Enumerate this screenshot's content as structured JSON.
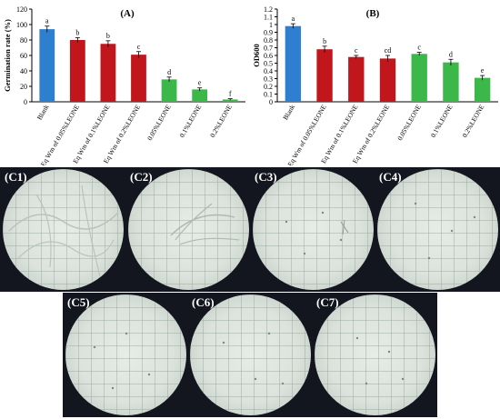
{
  "chart_data": [
    {
      "type": "bar",
      "panel_label": "(A)",
      "ylabel": "Germination rate (%)",
      "ylim": [
        0,
        120
      ],
      "yticks": [
        "0",
        "20",
        "40",
        "60",
        "80",
        "100",
        "120"
      ],
      "categories": [
        "Blank",
        "Eq Wm of 0.05%LEONE",
        "Eq Wm of 0.1%LEONE",
        "Eq Wm of 0.2%LEONE",
        "0.05%LEONE",
        "0.1%LEONE",
        "0.2%LEONE"
      ],
      "values": [
        94,
        80,
        75,
        61,
        29,
        16,
        3
      ],
      "errors": [
        4,
        3,
        4,
        4,
        3,
        2,
        1
      ],
      "letters": [
        "a",
        "b",
        "b",
        "c",
        "d",
        "e",
        "f"
      ],
      "colors": [
        "#2f7fd0",
        "#c0161c",
        "#c0161c",
        "#c0161c",
        "#3cb84a",
        "#3cb84a",
        "#3cb84a"
      ]
    },
    {
      "type": "bar",
      "panel_label": "(B)",
      "ylabel": "OD600",
      "ylim": [
        0,
        1.2
      ],
      "yticks": [
        "0",
        "0.1",
        "0.2",
        "0.3",
        "0.4",
        "0.5",
        "0.6",
        "0.7",
        "0.8",
        "0.9",
        "1",
        "1.1",
        "1.2"
      ],
      "categories": [
        "Blank",
        "Eq Wm of 0.05%LEONE",
        "Eq Wm of 0.1%LEONE",
        "Eq Wm of 0.2%LEONE",
        "0.05%LEONE",
        "0.1%LEONE",
        "0.2%LEONE"
      ],
      "values": [
        0.98,
        0.68,
        0.58,
        0.56,
        0.62,
        0.51,
        0.31
      ],
      "errors": [
        0.03,
        0.04,
        0.02,
        0.04,
        0.02,
        0.04,
        0.03
      ],
      "letters": [
        "a",
        "b",
        "c",
        "cd",
        "c",
        "d",
        "e"
      ],
      "colors": [
        "#2f7fd0",
        "#c0161c",
        "#c0161c",
        "#c0161c",
        "#3cb84a",
        "#3cb84a",
        "#3cb84a"
      ]
    }
  ],
  "micrographs": [
    {
      "label": "(C1)"
    },
    {
      "label": "(C2)"
    },
    {
      "label": "(C3)"
    },
    {
      "label": "(C4)"
    },
    {
      "label": "(C5)"
    },
    {
      "label": "(C6)"
    },
    {
      "label": "(C7)"
    }
  ]
}
